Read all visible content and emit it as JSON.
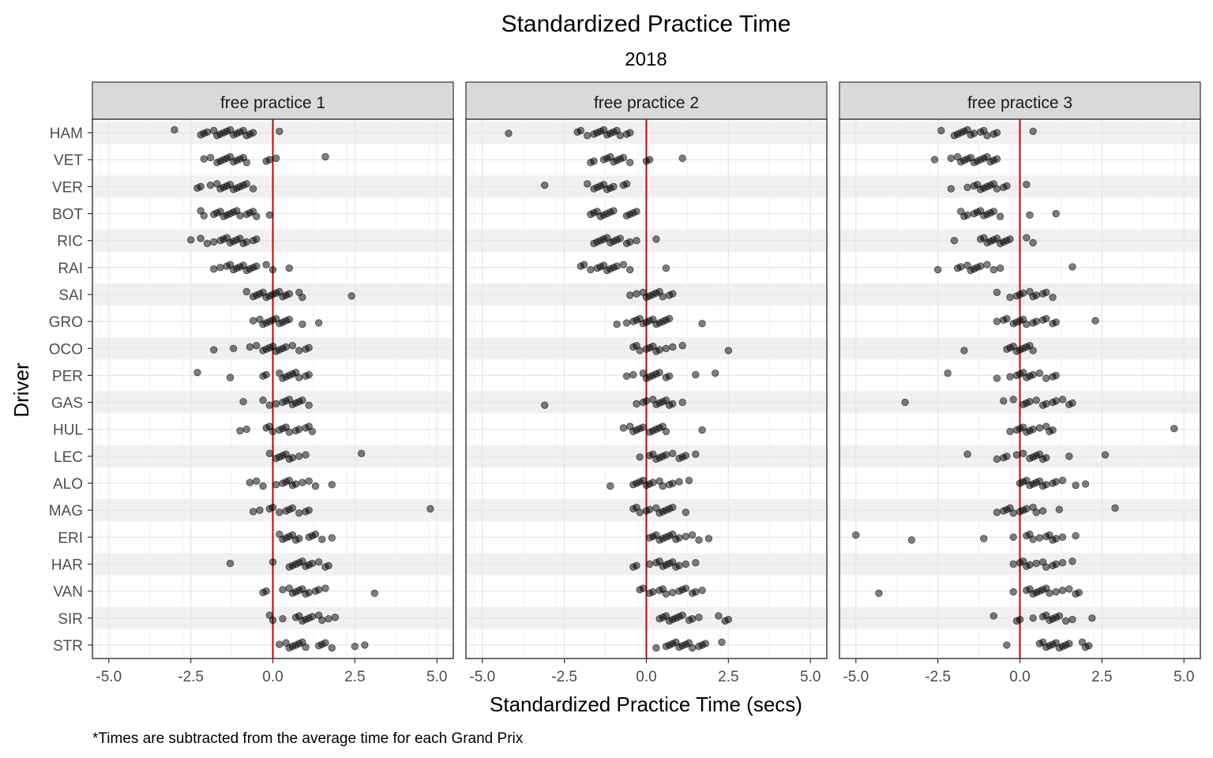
{
  "chart_data": {
    "type": "scatter",
    "title": "Standardized Practice Time",
    "subtitle": "2018",
    "xlabel": "Standardized Practice Time (secs)",
    "ylabel": "Driver",
    "caption": "*Times are subtracted from the average time for each Grand Prix",
    "xlim": [
      -5.5,
      5.5
    ],
    "x_ticks": [
      -5.0,
      -2.5,
      0.0,
      2.5,
      5.0
    ],
    "x_tick_labels": [
      "-5.0",
      "-2.5",
      "0.0",
      "2.5",
      "5.0"
    ],
    "reference_line": {
      "x": 0,
      "color": "#cc0000"
    },
    "point_color": "#000000",
    "point_opacity": 0.5,
    "grid": true,
    "drivers": [
      "HAM",
      "VET",
      "VER",
      "BOT",
      "RIC",
      "RAI",
      "SAI",
      "GRO",
      "OCO",
      "PER",
      "GAS",
      "HUL",
      "LEC",
      "ALO",
      "MAG",
      "ERI",
      "HAR",
      "VAN",
      "SIR",
      "STR"
    ],
    "panels": [
      {
        "name": "free practice 1",
        "points": {
          "HAM": [
            -3.0,
            -2.2,
            -2.1,
            -2.0,
            -1.8,
            -1.7,
            -1.6,
            -1.5,
            -1.4,
            -1.3,
            -1.2,
            -1.1,
            -1.0,
            -0.9,
            -0.8,
            -0.7,
            -0.6,
            0.2
          ],
          "VET": [
            -2.1,
            -1.9,
            -1.7,
            -1.6,
            -1.5,
            -1.4,
            -1.3,
            -1.2,
            -1.1,
            -1.0,
            -0.9,
            -0.8,
            -0.2,
            -0.1,
            0.1,
            1.6
          ],
          "VER": [
            -2.3,
            -2.2,
            -1.9,
            -1.7,
            -1.6,
            -1.5,
            -1.4,
            -1.3,
            -1.2,
            -1.1,
            -1.0,
            -0.9,
            -0.8,
            -0.6
          ],
          "BOT": [
            -2.2,
            -2.1,
            -1.8,
            -1.7,
            -1.6,
            -1.5,
            -1.4,
            -1.3,
            -1.2,
            -1.1,
            -1.0,
            -0.8,
            -0.7,
            -0.6,
            -0.5,
            -0.1
          ],
          "RIC": [
            -2.5,
            -2.2,
            -2.0,
            -1.8,
            -1.6,
            -1.5,
            -1.4,
            -1.3,
            -1.2,
            -1.1,
            -1.0,
            -0.9,
            -0.8,
            -0.6,
            -0.5
          ],
          "RAI": [
            -1.8,
            -1.6,
            -1.4,
            -1.3,
            -1.2,
            -1.1,
            -1.0,
            -0.9,
            -0.8,
            -0.7,
            -0.6,
            -0.5,
            -0.2,
            0.0,
            0.5
          ],
          "SAI": [
            -0.8,
            -0.6,
            -0.5,
            -0.4,
            -0.3,
            -0.2,
            -0.1,
            0.0,
            0.1,
            0.2,
            0.3,
            0.4,
            0.5,
            0.8,
            0.9,
            2.4
          ],
          "GRO": [
            -0.6,
            -0.4,
            -0.3,
            -0.2,
            -0.1,
            0.0,
            0.1,
            0.2,
            0.3,
            0.4,
            0.5,
            0.9,
            1.4
          ],
          "OCO": [
            -1.8,
            -1.2,
            -0.7,
            -0.5,
            -0.3,
            -0.2,
            -0.1,
            0.0,
            0.1,
            0.2,
            0.3,
            0.4,
            0.6,
            0.8,
            1.0,
            1.1
          ],
          "PER": [
            -2.3,
            -1.3,
            -0.3,
            -0.2,
            0.2,
            0.3,
            0.4,
            0.5,
            0.6,
            0.7,
            0.8,
            1.0,
            1.1
          ],
          "GAS": [
            -0.9,
            -0.3,
            -0.1,
            0.1,
            0.3,
            0.4,
            0.5,
            0.6,
            0.7,
            0.8,
            0.9,
            1.1
          ],
          "HUL": [
            -1.0,
            -0.8,
            -0.2,
            -0.1,
            0.0,
            0.2,
            0.3,
            0.4,
            0.5,
            0.7,
            0.8,
            1.0,
            1.1,
            1.2
          ],
          "LEC": [
            -0.1,
            0.1,
            0.2,
            0.3,
            0.4,
            0.5,
            0.6,
            0.8,
            1.0,
            2.7
          ],
          "ALO": [
            -0.7,
            -0.5,
            -0.3,
            0.1,
            0.3,
            0.4,
            0.5,
            0.6,
            0.7,
            0.9,
            1.1,
            1.3,
            1.8
          ],
          "MAG": [
            -0.6,
            -0.4,
            -0.1,
            0.0,
            0.2,
            0.4,
            0.5,
            0.6,
            0.8,
            1.0,
            1.1,
            4.8
          ],
          "ERI": [
            0.2,
            0.3,
            0.4,
            0.5,
            0.6,
            0.7,
            0.8,
            1.1,
            1.2,
            1.3,
            1.5,
            1.8
          ],
          "HAR": [
            -1.3,
            0.0,
            0.5,
            0.6,
            0.7,
            0.8,
            0.9,
            1.0,
            1.1,
            1.2,
            1.4,
            1.6,
            1.7
          ],
          "VAN": [
            -0.3,
            -0.2,
            0.3,
            0.5,
            0.6,
            0.7,
            0.8,
            0.9,
            1.0,
            1.1,
            1.3,
            1.4,
            1.6,
            3.1
          ],
          "SIR": [
            -0.1,
            0.0,
            0.3,
            0.7,
            0.8,
            0.9,
            1.0,
            1.1,
            1.2,
            1.4,
            1.5,
            1.7,
            1.9
          ],
          "STR": [
            0.2,
            0.4,
            0.5,
            0.6,
            0.7,
            0.8,
            0.9,
            1.0,
            1.4,
            1.5,
            1.6,
            1.8,
            2.5,
            2.8
          ]
        }
      },
      {
        "name": "free practice 2",
        "points": {
          "HAM": [
            -4.2,
            -2.1,
            -2.0,
            -1.8,
            -1.6,
            -1.5,
            -1.4,
            -1.3,
            -1.2,
            -1.1,
            -1.0,
            -0.9,
            -0.8,
            -0.6,
            -0.5
          ],
          "VET": [
            -1.7,
            -1.6,
            -1.3,
            -1.2,
            -1.1,
            -1.0,
            -0.9,
            -0.8,
            -0.7,
            -0.5,
            0.0,
            0.1,
            1.1
          ],
          "VER": [
            -3.1,
            -1.8,
            -1.6,
            -1.5,
            -1.4,
            -1.3,
            -1.2,
            -1.1,
            -1.0,
            -0.7,
            -0.6
          ],
          "BOT": [
            -1.7,
            -1.6,
            -1.5,
            -1.4,
            -1.3,
            -1.2,
            -1.1,
            -1.0,
            -0.6,
            -0.5,
            -0.4,
            -0.3
          ],
          "RIC": [
            -1.6,
            -1.5,
            -1.4,
            -1.3,
            -1.2,
            -1.1,
            -1.0,
            -0.9,
            -0.8,
            -0.6,
            -0.5,
            -0.3,
            0.3
          ],
          "RAI": [
            -2.0,
            -1.9,
            -1.7,
            -1.5,
            -1.4,
            -1.3,
            -1.2,
            -1.1,
            -1.0,
            -0.9,
            -0.7,
            -0.5,
            0.6
          ],
          "SAI": [
            -0.5,
            -0.3,
            -0.1,
            0.0,
            0.1,
            0.2,
            0.3,
            0.4,
            0.5,
            0.7,
            0.8
          ],
          "GRO": [
            -0.9,
            -0.6,
            -0.4,
            -0.3,
            -0.2,
            -0.1,
            0.0,
            0.1,
            0.2,
            0.3,
            0.4,
            0.5,
            0.6,
            0.7,
            1.7
          ],
          "OCO": [
            -0.4,
            -0.3,
            -0.2,
            0.0,
            0.1,
            0.2,
            0.3,
            0.4,
            0.6,
            0.8,
            1.1,
            2.5
          ],
          "PER": [
            -0.6,
            -0.4,
            -0.1,
            0.0,
            0.1,
            0.2,
            0.3,
            0.4,
            0.6,
            0.7,
            1.5,
            2.1
          ],
          "GAS": [
            -3.1,
            -0.3,
            -0.1,
            0.0,
            0.2,
            0.3,
            0.4,
            0.5,
            0.6,
            0.7,
            0.8,
            1.1
          ],
          "HUL": [
            -0.7,
            -0.5,
            -0.4,
            -0.3,
            -0.2,
            -0.1,
            0.1,
            0.2,
            0.3,
            0.4,
            0.5,
            0.6,
            1.7
          ],
          "LEC": [
            -0.2,
            0.1,
            0.2,
            0.3,
            0.4,
            0.5,
            0.6,
            0.8,
            1.0,
            1.1,
            1.2,
            1.5
          ],
          "ALO": [
            -1.1,
            -0.4,
            -0.3,
            -0.2,
            -0.1,
            0.0,
            0.1,
            0.2,
            0.4,
            0.5,
            0.7,
            0.8,
            1.0,
            1.3
          ],
          "MAG": [
            -0.4,
            -0.3,
            -0.2,
            0.0,
            0.1,
            0.3,
            0.4,
            0.5,
            0.6,
            0.7,
            0.8,
            1.2
          ],
          "ERI": [
            0.1,
            0.2,
            0.3,
            0.4,
            0.5,
            0.6,
            0.7,
            0.8,
            0.9,
            1.0,
            1.2,
            1.4,
            1.6,
            1.9
          ],
          "HAR": [
            -0.4,
            -0.3,
            0.1,
            0.3,
            0.4,
            0.5,
            0.6,
            0.7,
            0.8,
            0.9,
            1.0,
            1.2,
            1.5
          ],
          "VAN": [
            -0.2,
            -0.1,
            0.1,
            0.2,
            0.4,
            0.5,
            0.6,
            0.8,
            1.0,
            1.1,
            1.2,
            1.4,
            1.5,
            1.7
          ],
          "SIR": [
            0.4,
            0.5,
            0.6,
            0.7,
            0.8,
            0.9,
            1.0,
            1.1,
            1.3,
            1.4,
            1.6,
            2.2,
            2.4,
            2.5
          ],
          "STR": [
            0.3,
            0.6,
            0.7,
            0.8,
            0.9,
            1.0,
            1.1,
            1.2,
            1.3,
            1.4,
            1.6,
            1.7,
            1.8,
            2.3
          ]
        }
      },
      {
        "name": "free practice 3",
        "points": {
          "HAM": [
            -2.4,
            -2.0,
            -1.9,
            -1.8,
            -1.7,
            -1.6,
            -1.5,
            -1.4,
            -1.2,
            -1.1,
            -1.0,
            -0.8,
            -0.7,
            0.4
          ],
          "VET": [
            -2.6,
            -2.1,
            -1.9,
            -1.8,
            -1.7,
            -1.6,
            -1.5,
            -1.4,
            -1.3,
            -1.2,
            -1.1,
            -1.0,
            -0.9,
            -0.8,
            -0.7
          ],
          "VER": [
            -2.1,
            -1.6,
            -1.4,
            -1.3,
            -1.2,
            -1.1,
            -1.0,
            -0.9,
            -0.8,
            -0.7,
            -0.5,
            -0.4,
            0.2
          ],
          "BOT": [
            -1.8,
            -1.7,
            -1.6,
            -1.4,
            -1.3,
            -1.2,
            -1.1,
            -1.0,
            -0.9,
            -0.8,
            -0.6,
            0.3,
            1.1
          ],
          "RIC": [
            -2.0,
            -1.2,
            -1.1,
            -1.0,
            -0.9,
            -0.8,
            -0.7,
            -0.6,
            -0.5,
            -0.4,
            -0.3,
            0.2,
            0.4
          ],
          "RAI": [
            -2.5,
            -1.9,
            -1.8,
            -1.6,
            -1.5,
            -1.4,
            -1.3,
            -1.2,
            -1.0,
            -0.8,
            -0.6,
            1.6
          ],
          "SAI": [
            -0.7,
            -0.3,
            -0.1,
            0.0,
            0.1,
            0.3,
            0.4,
            0.5,
            0.7,
            0.8,
            1.0
          ],
          "GRO": [
            -0.7,
            -0.5,
            -0.4,
            -0.2,
            -0.1,
            0.0,
            0.1,
            0.2,
            0.4,
            0.5,
            0.7,
            0.8,
            1.0,
            1.1,
            2.3
          ],
          "OCO": [
            -1.7,
            -0.4,
            -0.3,
            -0.2,
            -0.1,
            0.0,
            0.1,
            0.2,
            0.3,
            0.4
          ],
          "PER": [
            -2.2,
            -0.7,
            -0.3,
            -0.1,
            0.0,
            0.1,
            0.2,
            0.3,
            0.4,
            0.6,
            0.8,
            1.0,
            1.1
          ],
          "GAS": [
            -3.5,
            -0.5,
            -0.2,
            0.1,
            0.2,
            0.3,
            0.5,
            0.7,
            0.8,
            1.0,
            1.1,
            1.3,
            1.5,
            1.6
          ],
          "HUL": [
            -0.3,
            -0.1,
            0.0,
            0.1,
            0.2,
            0.3,
            0.4,
            0.6,
            0.8,
            0.9,
            1.0,
            4.7
          ],
          "LEC": [
            -1.6,
            -0.7,
            -0.5,
            -0.4,
            -0.1,
            0.1,
            0.3,
            0.4,
            0.5,
            0.6,
            0.7,
            0.8,
            1.5,
            2.6
          ],
          "ALO": [
            0.0,
            0.1,
            0.2,
            0.3,
            0.4,
            0.5,
            0.6,
            0.7,
            0.8,
            1.0,
            1.1,
            1.3,
            1.7,
            2.0
          ],
          "MAG": [
            -0.7,
            -0.5,
            -0.4,
            -0.3,
            -0.2,
            0.0,
            0.1,
            0.2,
            0.4,
            0.5,
            0.7,
            1.2,
            2.9
          ],
          "ERI": [
            -5.0,
            -3.3,
            -1.1,
            -0.2,
            0.2,
            0.3,
            0.4,
            0.6,
            0.8,
            0.9,
            1.0,
            1.1,
            1.3,
            1.7
          ],
          "HAR": [
            -0.2,
            0.0,
            0.1,
            0.2,
            0.3,
            0.5,
            0.7,
            0.8,
            1.0,
            1.1,
            1.3,
            1.6
          ],
          "VAN": [
            -4.3,
            -0.2,
            0.2,
            0.3,
            0.4,
            0.5,
            0.6,
            0.7,
            0.8,
            0.9,
            1.1,
            1.3,
            1.5,
            1.7,
            1.8
          ],
          "SIR": [
            -0.8,
            -0.1,
            0.0,
            0.4,
            0.7,
            0.8,
            0.9,
            1.0,
            1.1,
            1.2,
            1.4,
            1.6,
            2.2
          ],
          "STR": [
            -0.4,
            0.6,
            0.7,
            0.8,
            0.9,
            1.0,
            1.1,
            1.2,
            1.3,
            1.4,
            1.5,
            1.9,
            2.0,
            2.1
          ]
        }
      }
    ]
  }
}
